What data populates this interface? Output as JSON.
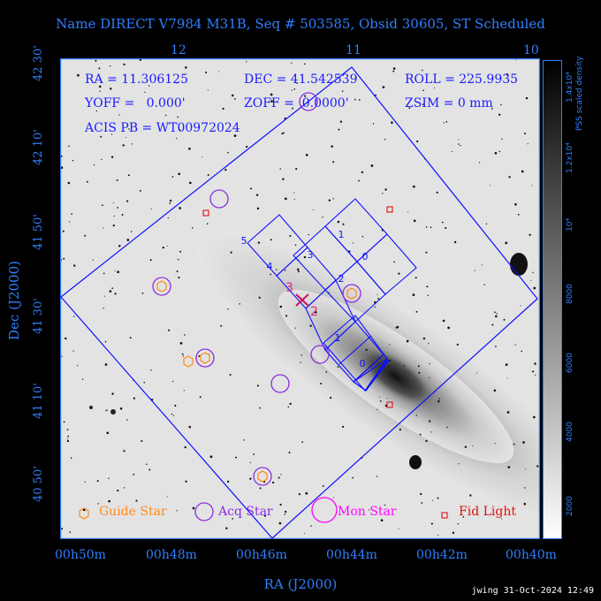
{
  "title": "Name DIRECT V7984 M31B, Seq # 503585, Obsid 30605, ST Scheduled",
  "info": {
    "ra": "RA = 11.306125",
    "dec": "DEC = 41.542539",
    "roll": "ROLL = 225.9935",
    "yoff": "YOFF =   0.000'",
    "zoff": "ZOFF =  0.0000'",
    "zsim": "ZSIM = 0 mm",
    "acis": "ACIS PB = WT00972024"
  },
  "axes": {
    "x_label": "RA (J2000)",
    "y_label": "Dec (J2000)",
    "x_ticks": [
      "00h50m",
      "00h48m",
      "00h46m",
      "00h44m",
      "00h42m",
      "00h40m"
    ],
    "top_ticks": [
      "12",
      "11",
      "10"
    ],
    "y_ticks": [
      "42 30'",
      "42 10'",
      "41 50'",
      "41 30'",
      "41 10'",
      "40 50'"
    ]
  },
  "legend": {
    "guide": "Guide Star",
    "acq": "Acq Star",
    "mon": "Mon Star",
    "fid": "Fid Light"
  },
  "chips": [
    "5",
    "4",
    "3",
    "2",
    "1",
    "0",
    "3",
    "2",
    "1",
    "0"
  ],
  "markers": {
    "s3": "3",
    "s2": "2"
  },
  "colorbar": {
    "title": "PSS scaled density",
    "ticks": [
      "1.4x10⁴",
      "1.2x10⁴",
      "10⁴",
      "8000",
      "6000",
      "4000",
      "2000"
    ]
  },
  "stamp": "jwing 31-Oct-2024 12:49",
  "colors": {
    "axis": "#2f7fff",
    "guide": "#ff8a1a",
    "acq": "#8a2be2",
    "mon": "#ff00ff",
    "fid": "#e01010",
    "fov": "#1010ff"
  }
}
